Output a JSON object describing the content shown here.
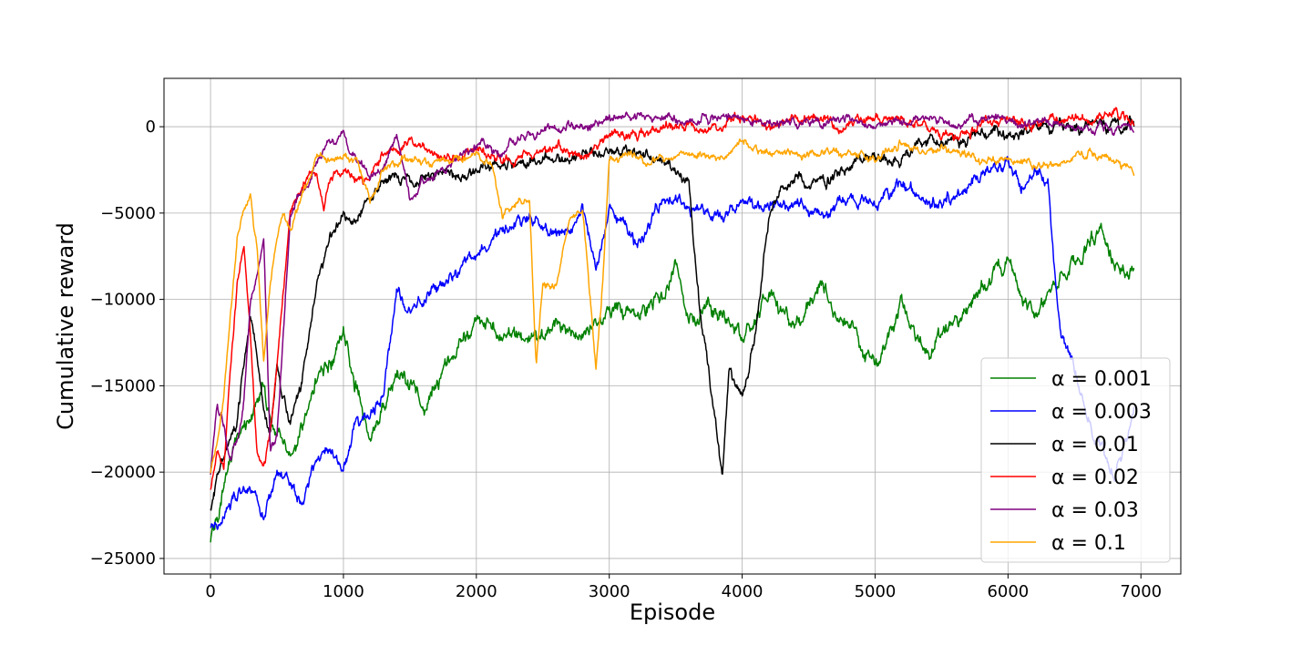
{
  "chart_data": {
    "type": "line",
    "title": "",
    "xlabel": "Episode",
    "ylabel": "Cumulative reward",
    "xlim": [
      -350,
      7300
    ],
    "ylim": [
      -25900,
      2800
    ],
    "x_ticks": [
      0,
      1000,
      2000,
      3000,
      4000,
      5000,
      6000,
      7000
    ],
    "y_ticks": [
      -25000,
      -20000,
      -15000,
      -10000,
      -5000,
      0
    ],
    "x_tick_labels": [
      "0",
      "1000",
      "2000",
      "3000",
      "4000",
      "5000",
      "6000",
      "7000"
    ],
    "y_tick_labels": [
      "−25000",
      "−20000",
      "−15000",
      "−10000",
      "−5000",
      "0"
    ],
    "grid": true,
    "legend_position": "lower-right",
    "series": [
      {
        "name": "α = 0.001",
        "color": "#008000",
        "noise": 900,
        "x": [
          0,
          100,
          200,
          400,
          600,
          800,
          1000,
          1200,
          1400,
          1600,
          1800,
          2000,
          2200,
          2400,
          2600,
          2800,
          3000,
          3200,
          3400,
          3500,
          3600,
          3800,
          4000,
          4200,
          4400,
          4600,
          4800,
          5000,
          5200,
          5400,
          5600,
          5800,
          6000,
          6200,
          6400,
          6600,
          6700,
          6800,
          6950
        ],
        "y": [
          -24000,
          -21000,
          -18000,
          -15500,
          -19000,
          -15000,
          -12000,
          -18000,
          -14000,
          -16000,
          -13000,
          -11500,
          -12000,
          -12500,
          -11500,
          -12500,
          -11000,
          -10500,
          -9500,
          -7500,
          -10500,
          -10500,
          -12000,
          -10000,
          -11500,
          -9000,
          -11000,
          -14000,
          -10500,
          -13500,
          -11500,
          -9500,
          -8000,
          -10500,
          -8500,
          -7000,
          -6000,
          -8000,
          -8500
        ]
      },
      {
        "name": "α = 0.003",
        "color": "#0000ff",
        "noise": 700,
        "x": [
          0,
          100,
          200,
          300,
          400,
          500,
          600,
          700,
          800,
          900,
          1000,
          1100,
          1200,
          1300,
          1400,
          1500,
          1600,
          1800,
          2000,
          2200,
          2400,
          2600,
          2800,
          2900,
          3000,
          3200,
          3400,
          3600,
          3800,
          4000,
          4200,
          4400,
          4600,
          4800,
          5000,
          5200,
          5400,
          5600,
          5800,
          6000,
          6100,
          6200,
          6300,
          6350,
          6400,
          6500,
          6600,
          6700,
          6800,
          6900,
          6950
        ],
        "y": [
          -23000,
          -22500,
          -21000,
          -21000,
          -22500,
          -20000,
          -20500,
          -22000,
          -19500,
          -18500,
          -20000,
          -17000,
          -17000,
          -15500,
          -9500,
          -10500,
          -10000,
          -8500,
          -7500,
          -6000,
          -5000,
          -6000,
          -5000,
          -8000,
          -4500,
          -6500,
          -4500,
          -4500,
          -5500,
          -4000,
          -5000,
          -4500,
          -5000,
          -4000,
          -4500,
          -3500,
          -4500,
          -4000,
          -3000,
          -2500,
          -3500,
          -3000,
          -3000,
          -8000,
          -12000,
          -14000,
          -17000,
          -19000,
          -20000,
          -18500,
          -17000
        ]
      },
      {
        "name": "α = 0.01",
        "color": "#000000",
        "noise": 650,
        "x": [
          0,
          100,
          200,
          300,
          400,
          450,
          500,
          600,
          700,
          800,
          900,
          1000,
          1100,
          1200,
          1300,
          1400,
          1500,
          1600,
          1800,
          2000,
          2200,
          2400,
          2600,
          2800,
          3000,
          3200,
          3400,
          3600,
          3700,
          3800,
          3850,
          3900,
          4000,
          4100,
          4200,
          4400,
          4600,
          4800,
          5000,
          5200,
          5400,
          5600,
          5800,
          6000,
          6200,
          6400,
          6600,
          6800,
          6950
        ],
        "y": [
          -22000,
          -19000,
          -17000,
          -11000,
          -16000,
          -18000,
          -14000,
          -17000,
          -14000,
          -9000,
          -6000,
          -5000,
          -5500,
          -4000,
          -3500,
          -3000,
          -3500,
          -3000,
          -3000,
          -2500,
          -2000,
          -2000,
          -2000,
          -1500,
          -1500,
          -1500,
          -2000,
          -3500,
          -12000,
          -17000,
          -20500,
          -14000,
          -16000,
          -12000,
          -5000,
          -3000,
          -3500,
          -2500,
          -1500,
          -2000,
          -1000,
          -1000,
          -500,
          -500,
          0,
          0,
          0,
          0,
          0
        ]
      },
      {
        "name": "α = 0.02",
        "color": "#ff0000",
        "noise": 550,
        "x": [
          0,
          50,
          100,
          150,
          200,
          250,
          300,
          350,
          400,
          450,
          500,
          600,
          700,
          800,
          850,
          900,
          1000,
          1100,
          1200,
          1300,
          1400,
          1500,
          1600,
          1800,
          2000,
          2200,
          2400,
          2600,
          2800,
          3000,
          3200,
          3400,
          3600,
          3800,
          4000,
          4200,
          4400,
          4600,
          4800,
          5000,
          5200,
          5400,
          5600,
          5800,
          6000,
          6200,
          6400,
          6600,
          6800,
          6950
        ],
        "y": [
          -21000,
          -18500,
          -19500,
          -14000,
          -9000,
          -7000,
          -12000,
          -19000,
          -20000,
          -18000,
          -14000,
          -5000,
          -3500,
          -2500,
          -5000,
          -3000,
          -2500,
          -3500,
          -3000,
          -1500,
          -1500,
          -1000,
          -1500,
          -2000,
          -1500,
          -2000,
          -1500,
          -1000,
          -2000,
          -500,
          -500,
          0,
          0,
          0,
          500,
          0,
          500,
          500,
          0,
          500,
          500,
          0,
          0,
          0,
          500,
          0,
          500,
          500,
          500,
          500
        ]
      },
      {
        "name": "α = 0.03",
        "color": "#800080",
        "noise": 500,
        "x": [
          0,
          50,
          100,
          150,
          200,
          250,
          300,
          350,
          400,
          450,
          500,
          600,
          700,
          800,
          900,
          1000,
          1100,
          1200,
          1300,
          1400,
          1500,
          1600,
          1800,
          2000,
          2200,
          2400,
          2600,
          2800,
          3000,
          3200,
          3400,
          3600,
          3800,
          4000,
          4200,
          4400,
          4600,
          4800,
          5000,
          5200,
          5400,
          5600,
          5800,
          6000,
          6200,
          6400,
          6600,
          6800,
          6950
        ],
        "y": [
          -20000,
          -16000,
          -17000,
          -19000,
          -18000,
          -16000,
          -10000,
          -8000,
          -6500,
          -19000,
          -18000,
          -5000,
          -3500,
          -2000,
          -1000,
          -500,
          -2000,
          -3000,
          -2500,
          -500,
          -4000,
          -3000,
          -2000,
          -1000,
          -1500,
          0,
          0,
          0,
          500,
          500,
          500,
          500,
          500,
          500,
          0,
          500,
          500,
          500,
          0,
          500,
          500,
          0,
          500,
          0,
          500,
          0,
          0,
          0,
          0
        ]
      },
      {
        "name": "α = 0.1",
        "color": "#ffa500",
        "noise": 450,
        "x": [
          0,
          50,
          100,
          150,
          200,
          250,
          300,
          350,
          400,
          450,
          500,
          550,
          600,
          700,
          800,
          900,
          1000,
          1100,
          1200,
          1300,
          1400,
          1600,
          1800,
          2000,
          2100,
          2200,
          2300,
          2400,
          2450,
          2500,
          2600,
          2700,
          2800,
          2850,
          2900,
          2950,
          3000,
          3200,
          3400,
          3600,
          3800,
          4000,
          4200,
          4400,
          4600,
          4800,
          5000,
          5200,
          5400,
          5600,
          5800,
          6000,
          6200,
          6400,
          6600,
          6800,
          6950
        ],
        "y": [
          -20000,
          -18000,
          -16000,
          -11000,
          -6500,
          -5000,
          -3800,
          -7000,
          -13500,
          -9000,
          -6500,
          -5000,
          -6000,
          -4000,
          -1500,
          -2000,
          -1500,
          -2000,
          -4000,
          -2500,
          -2000,
          -2000,
          -2000,
          -1500,
          -1500,
          -5000,
          -4500,
          -4500,
          -14000,
          -9000,
          -9000,
          -5000,
          -4500,
          -9000,
          -14000,
          -9000,
          -2000,
          -1500,
          -2000,
          -1500,
          -2000,
          -1000,
          -1500,
          -1500,
          -1500,
          -1500,
          -2000,
          -1000,
          -1500,
          -1500,
          -2000,
          -1500,
          -2000,
          -2000,
          -1500,
          -2000,
          -2500
        ]
      }
    ]
  }
}
